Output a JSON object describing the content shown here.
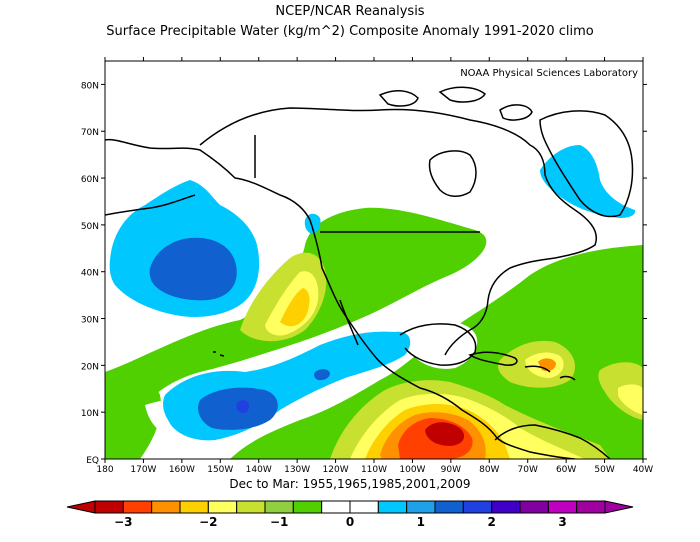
{
  "title": "NCEP/NCAR Reanalysis",
  "subtitle": "Surface Precipitable Water (kg/m^2) Composite Anomaly 1991-2020 climo",
  "credit": "NOAA Physical Sciences Laboratory",
  "period_label": "Dec to Mar: 1955,1965,1985,2001,2009",
  "lat_labels": [
    "80N",
    "70N",
    "60N",
    "50N",
    "40N",
    "30N",
    "20N",
    "10N",
    "EQ"
  ],
  "lon_labels": [
    "180",
    "170W",
    "160W",
    "150W",
    "140W",
    "130W",
    "120W",
    "110W",
    "100W",
    "90W",
    "80W",
    "70W",
    "60W",
    "50W",
    "40W"
  ],
  "colorbar": {
    "colors": [
      "#c00000",
      "#ff4000",
      "#ff9000",
      "#ffd000",
      "#ffff60",
      "#c8e030",
      "#90d040",
      "#50d000",
      "#ffffff",
      "#ffffff",
      "#00c8ff",
      "#20a0e8",
      "#1060d0",
      "#2040e0",
      "#4000c8",
      "#8000a0",
      "#c000c0",
      "#a000a0"
    ],
    "tick_labels": [
      "-3",
      "-2",
      "-1",
      "0",
      "1",
      "2",
      "3"
    ]
  },
  "legend_colors": {
    "dark_red": "#c00000",
    "orange_red": "#ff4000",
    "orange": "#ff9000",
    "yellow_orange": "#ffd000",
    "yellow": "#ffff60",
    "yellow_green": "#c8e030",
    "light_green": "#90d040",
    "green": "#50d000",
    "cyan": "#00c8ff",
    "light_blue": "#20a0e8",
    "blue": "#1060d0",
    "dark_blue": "#2040e0",
    "purple_blue": "#4000c8"
  }
}
